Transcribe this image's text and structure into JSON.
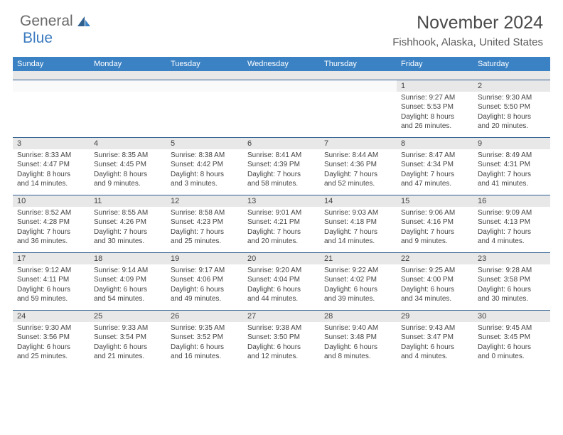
{
  "logo": {
    "part1": "General",
    "part2": "Blue"
  },
  "title": "November 2024",
  "location": "Fishhook, Alaska, United States",
  "colors": {
    "header_bg": "#3b82c4",
    "header_text": "#ffffff",
    "num_bg": "#e8e8e8",
    "border": "#2f5f8f",
    "text": "#444444",
    "logo_gray": "#6a6a6a",
    "logo_blue": "#3b7bbf"
  },
  "day_headers": [
    "Sunday",
    "Monday",
    "Tuesday",
    "Wednesday",
    "Thursday",
    "Friday",
    "Saturday"
  ],
  "weeks": [
    {
      "nums": [
        "",
        "",
        "",
        "",
        "",
        "1",
        "2"
      ],
      "cells": [
        null,
        null,
        null,
        null,
        null,
        {
          "sunrise": "9:27 AM",
          "sunset": "5:53 PM",
          "dl1": "8 hours",
          "dl2": "and 26 minutes."
        },
        {
          "sunrise": "9:30 AM",
          "sunset": "5:50 PM",
          "dl1": "8 hours",
          "dl2": "and 20 minutes."
        }
      ]
    },
    {
      "nums": [
        "3",
        "4",
        "5",
        "6",
        "7",
        "8",
        "9"
      ],
      "cells": [
        {
          "sunrise": "8:33 AM",
          "sunset": "4:47 PM",
          "dl1": "8 hours",
          "dl2": "and 14 minutes."
        },
        {
          "sunrise": "8:35 AM",
          "sunset": "4:45 PM",
          "dl1": "8 hours",
          "dl2": "and 9 minutes."
        },
        {
          "sunrise": "8:38 AM",
          "sunset": "4:42 PM",
          "dl1": "8 hours",
          "dl2": "and 3 minutes."
        },
        {
          "sunrise": "8:41 AM",
          "sunset": "4:39 PM",
          "dl1": "7 hours",
          "dl2": "and 58 minutes."
        },
        {
          "sunrise": "8:44 AM",
          "sunset": "4:36 PM",
          "dl1": "7 hours",
          "dl2": "and 52 minutes."
        },
        {
          "sunrise": "8:47 AM",
          "sunset": "4:34 PM",
          "dl1": "7 hours",
          "dl2": "and 47 minutes."
        },
        {
          "sunrise": "8:49 AM",
          "sunset": "4:31 PM",
          "dl1": "7 hours",
          "dl2": "and 41 minutes."
        }
      ]
    },
    {
      "nums": [
        "10",
        "11",
        "12",
        "13",
        "14",
        "15",
        "16"
      ],
      "cells": [
        {
          "sunrise": "8:52 AM",
          "sunset": "4:28 PM",
          "dl1": "7 hours",
          "dl2": "and 36 minutes."
        },
        {
          "sunrise": "8:55 AM",
          "sunset": "4:26 PM",
          "dl1": "7 hours",
          "dl2": "and 30 minutes."
        },
        {
          "sunrise": "8:58 AM",
          "sunset": "4:23 PM",
          "dl1": "7 hours",
          "dl2": "and 25 minutes."
        },
        {
          "sunrise": "9:01 AM",
          "sunset": "4:21 PM",
          "dl1": "7 hours",
          "dl2": "and 20 minutes."
        },
        {
          "sunrise": "9:03 AM",
          "sunset": "4:18 PM",
          "dl1": "7 hours",
          "dl2": "and 14 minutes."
        },
        {
          "sunrise": "9:06 AM",
          "sunset": "4:16 PM",
          "dl1": "7 hours",
          "dl2": "and 9 minutes."
        },
        {
          "sunrise": "9:09 AM",
          "sunset": "4:13 PM",
          "dl1": "7 hours",
          "dl2": "and 4 minutes."
        }
      ]
    },
    {
      "nums": [
        "17",
        "18",
        "19",
        "20",
        "21",
        "22",
        "23"
      ],
      "cells": [
        {
          "sunrise": "9:12 AM",
          "sunset": "4:11 PM",
          "dl1": "6 hours",
          "dl2": "and 59 minutes."
        },
        {
          "sunrise": "9:14 AM",
          "sunset": "4:09 PM",
          "dl1": "6 hours",
          "dl2": "and 54 minutes."
        },
        {
          "sunrise": "9:17 AM",
          "sunset": "4:06 PM",
          "dl1": "6 hours",
          "dl2": "and 49 minutes."
        },
        {
          "sunrise": "9:20 AM",
          "sunset": "4:04 PM",
          "dl1": "6 hours",
          "dl2": "and 44 minutes."
        },
        {
          "sunrise": "9:22 AM",
          "sunset": "4:02 PM",
          "dl1": "6 hours",
          "dl2": "and 39 minutes."
        },
        {
          "sunrise": "9:25 AM",
          "sunset": "4:00 PM",
          "dl1": "6 hours",
          "dl2": "and 34 minutes."
        },
        {
          "sunrise": "9:28 AM",
          "sunset": "3:58 PM",
          "dl1": "6 hours",
          "dl2": "and 30 minutes."
        }
      ]
    },
    {
      "nums": [
        "24",
        "25",
        "26",
        "27",
        "28",
        "29",
        "30"
      ],
      "cells": [
        {
          "sunrise": "9:30 AM",
          "sunset": "3:56 PM",
          "dl1": "6 hours",
          "dl2": "and 25 minutes."
        },
        {
          "sunrise": "9:33 AM",
          "sunset": "3:54 PM",
          "dl1": "6 hours",
          "dl2": "and 21 minutes."
        },
        {
          "sunrise": "9:35 AM",
          "sunset": "3:52 PM",
          "dl1": "6 hours",
          "dl2": "and 16 minutes."
        },
        {
          "sunrise": "9:38 AM",
          "sunset": "3:50 PM",
          "dl1": "6 hours",
          "dl2": "and 12 minutes."
        },
        {
          "sunrise": "9:40 AM",
          "sunset": "3:48 PM",
          "dl1": "6 hours",
          "dl2": "and 8 minutes."
        },
        {
          "sunrise": "9:43 AM",
          "sunset": "3:47 PM",
          "dl1": "6 hours",
          "dl2": "and 4 minutes."
        },
        {
          "sunrise": "9:45 AM",
          "sunset": "3:45 PM",
          "dl1": "6 hours",
          "dl2": "and 0 minutes."
        }
      ]
    }
  ]
}
